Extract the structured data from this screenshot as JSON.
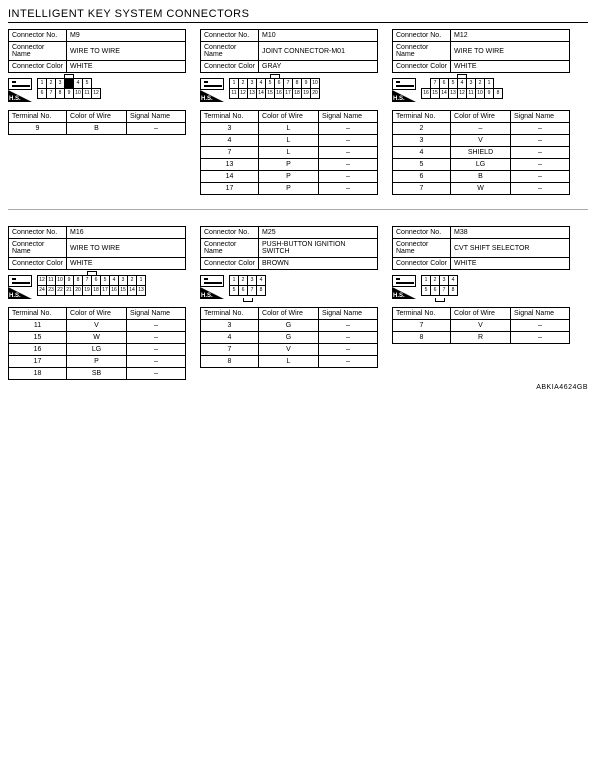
{
  "title": "INTELLIGENT KEY SYSTEM CONNECTORS",
  "footer": "ABKIA4624GB",
  "labels": {
    "connector_no": "Connector No.",
    "connector_name": "Connector Name",
    "connector_color": "Connector Color",
    "hs": "H.S.",
    "terminal": "Terminal No.",
    "color": "Color of Wire",
    "signal": "Signal Name"
  },
  "connectors": {
    "m9": {
      "no": "M9",
      "name": "WIRE TO WIRE",
      "color": "WHITE",
      "pins": {
        "rows": [
          [
            "1",
            "2",
            "3",
            "",
            "4",
            "5"
          ],
          [
            "6",
            "7",
            "8",
            "9",
            "10",
            "11",
            "12"
          ]
        ],
        "filled": [
          [
            0,
            3
          ]
        ],
        "tab": "top"
      },
      "table": [
        {
          "t": "9",
          "c": "B",
          "s": "–"
        }
      ]
    },
    "m10": {
      "no": "M10",
      "name": "JOINT CONNECTOR-M01",
      "color": "GRAY",
      "pins": {
        "rows": [
          [
            "1",
            "2",
            "3",
            "4",
            "5",
            "6",
            "7",
            "8",
            "9",
            "10"
          ],
          [
            "11",
            "12",
            "13",
            "14",
            "15",
            "16",
            "17",
            "18",
            "19",
            "20"
          ]
        ],
        "tab": "top",
        "reverse": true
      },
      "table": [
        {
          "t": "3",
          "c": "L",
          "s": "–"
        },
        {
          "t": "4",
          "c": "L",
          "s": "–"
        },
        {
          "t": "7",
          "c": "L",
          "s": "–"
        },
        {
          "t": "13",
          "c": "P",
          "s": "–"
        },
        {
          "t": "14",
          "c": "P",
          "s": "–"
        },
        {
          "t": "17",
          "c": "P",
          "s": "–"
        }
      ]
    },
    "m12": {
      "no": "M12",
      "name": "WIRE TO WIRE",
      "color": "WHITE",
      "pins": {
        "rows": [
          [
            "7",
            "6",
            "5",
            "4",
            "3",
            "2",
            "1"
          ],
          [
            "16",
            "15",
            "14",
            "13",
            "12",
            "11",
            "10",
            "9",
            "8"
          ]
        ],
        "tab": "top",
        "offset": true
      },
      "table": [
        {
          "t": "2",
          "c": "–",
          "s": "–"
        },
        {
          "t": "3",
          "c": "V",
          "s": "–"
        },
        {
          "t": "4",
          "c": "SHIELD",
          "s": "–"
        },
        {
          "t": "5",
          "c": "LG",
          "s": "–"
        },
        {
          "t": "6",
          "c": "B",
          "s": "–"
        },
        {
          "t": "7",
          "c": "W",
          "s": "–"
        }
      ]
    },
    "m16": {
      "no": "M16",
      "name": "WIRE TO WIRE",
      "color": "WHITE",
      "pins": {
        "rows": [
          [
            "12",
            "11",
            "10",
            "9",
            "8",
            "7",
            "6",
            "5",
            "4",
            "3",
            "2",
            "1"
          ],
          [
            "24",
            "23",
            "22",
            "21",
            "20",
            "19",
            "18",
            "17",
            "16",
            "15",
            "14",
            "13"
          ]
        ],
        "tab": "top"
      },
      "table": [
        {
          "t": "11",
          "c": "V",
          "s": "–"
        },
        {
          "t": "15",
          "c": "W",
          "s": "–"
        },
        {
          "t": "16",
          "c": "LG",
          "s": "–"
        },
        {
          "t": "17",
          "c": "P",
          "s": "–"
        },
        {
          "t": "18",
          "c": "SB",
          "s": "–"
        }
      ]
    },
    "m25": {
      "no": "M25",
      "name": "PUSH-BUTTON IGNITION SWITCH",
      "color": "BROWN",
      "pins": {
        "rows": [
          [
            "1",
            "2",
            "3",
            "4"
          ],
          [
            "5",
            "6",
            "7",
            "8"
          ]
        ],
        "tab": "bottom"
      },
      "table": [
        {
          "t": "3",
          "c": "G",
          "s": "–"
        },
        {
          "t": "4",
          "c": "G",
          "s": "–"
        },
        {
          "t": "7",
          "c": "V",
          "s": "–"
        },
        {
          "t": "8",
          "c": "L",
          "s": "–"
        }
      ]
    },
    "m38": {
      "no": "M38",
      "name": "CVT SHIFT SELECTOR",
      "color": "WHITE",
      "pins": {
        "rows": [
          [
            "1",
            "2",
            "3",
            "4"
          ],
          [
            "5",
            "6",
            "7",
            "8"
          ]
        ],
        "tab": "bottom"
      },
      "table": [
        {
          "t": "7",
          "c": "V",
          "s": "–"
        },
        {
          "t": "8",
          "c": "R",
          "s": "–"
        }
      ]
    }
  },
  "order_top": [
    "m9",
    "m10",
    "m12"
  ],
  "order_bottom": [
    "m16",
    "m25",
    "m38"
  ]
}
